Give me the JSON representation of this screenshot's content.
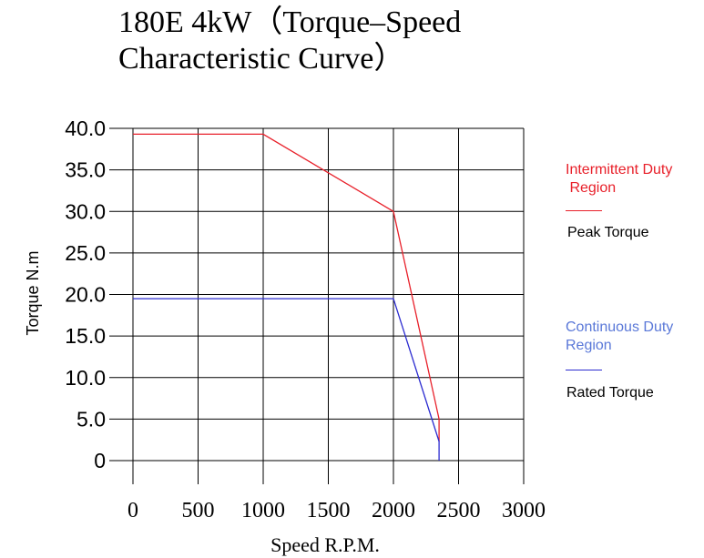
{
  "title": {
    "line1": "180E 4kW（Torque–Speed",
    "line2": "Characteristic Curve）"
  },
  "legend": {
    "intermittent_region_line1": "Intermittent Duty",
    "intermittent_region_line2": " Region",
    "peak_label": "Peak Torque",
    "continuous_region_line1": "Continuous Duty",
    "continuous_region_line2": "Region",
    "rated_label": "Rated Torque"
  },
  "colors": {
    "peak": "#e8202a",
    "rated": "#2b2bd0",
    "grid": "#000000"
  },
  "chart_data": {
    "type": "line",
    "xlabel": "Speed R.P.M.",
    "ylabel": "Torque N.m",
    "xlim": [
      0,
      3000
    ],
    "ylim": [
      0,
      40
    ],
    "x_ticks": [
      "0",
      "500",
      "1000",
      "1500",
      "2000",
      "2500",
      "3000"
    ],
    "x_tick_values": [
      0,
      500,
      1000,
      1500,
      2000,
      2500,
      3000
    ],
    "y_ticks": [
      "0",
      "5.0",
      "10.0",
      "15.0",
      "20.0",
      "25.0",
      "30.0",
      "35.0",
      "40.0"
    ],
    "y_tick_values": [
      0,
      5,
      10,
      15,
      20,
      25,
      30,
      35,
      40
    ],
    "grid": true,
    "series": [
      {
        "name": "Peak Torque",
        "color": "#e8202a",
        "x": [
          0,
          1000,
          2000,
          2350,
          2350
        ],
        "y": [
          39.3,
          39.3,
          30,
          5,
          2.3
        ]
      },
      {
        "name": "Rated Torque",
        "color": "#2b2bd0",
        "x": [
          0,
          2000,
          2350,
          2350
        ],
        "y": [
          19.5,
          19.5,
          2.3,
          0
        ]
      }
    ]
  }
}
